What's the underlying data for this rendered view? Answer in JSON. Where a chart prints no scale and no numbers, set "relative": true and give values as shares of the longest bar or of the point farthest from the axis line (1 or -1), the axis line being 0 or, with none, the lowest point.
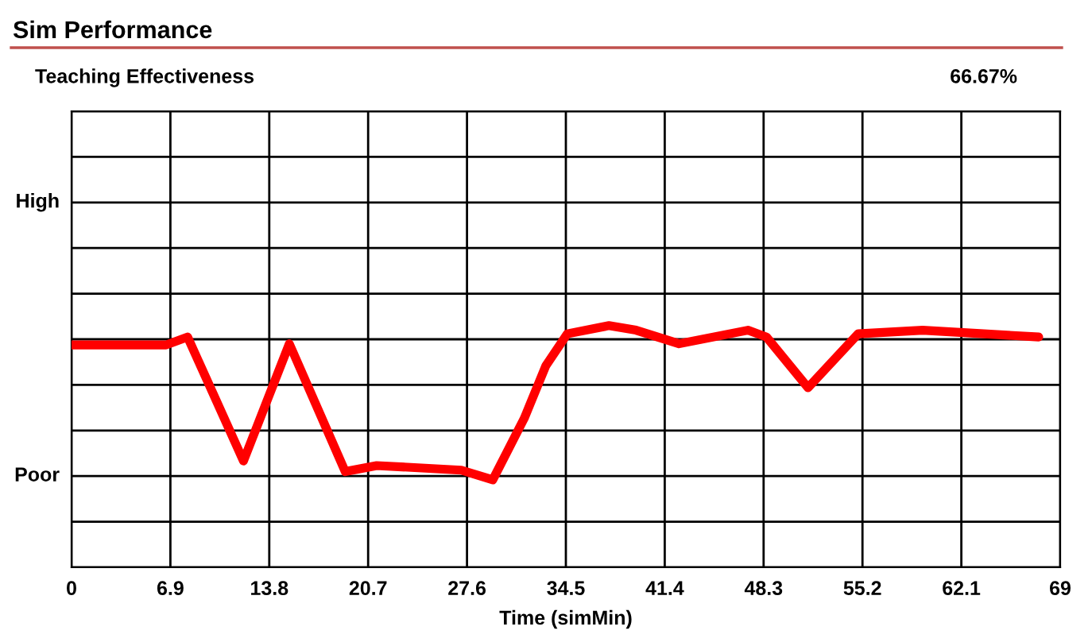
{
  "chart_data": {
    "type": "line",
    "title": "Sim Performance",
    "subtitle": "Teaching Effectiveness",
    "annotations": [
      "66.67%",
      "High",
      "Poor"
    ],
    "relative": true,
    "xlabel": "Time (simMin)",
    "x": [
      0,
      6.6,
      8.1,
      12.0,
      15.2,
      19.1,
      21.3,
      27.2,
      29.4,
      31.6,
      33.1,
      34.6,
      37.5,
      39.4,
      42.4,
      47.2,
      48.5,
      51.4,
      54.9,
      59.4,
      67.5
    ],
    "series": [
      {
        "color": "#ff0000",
        "values": [
          0.92,
          0.92,
          0.953,
          0.44,
          0.925,
          0.396,
          0.421,
          0.402,
          0.362,
          0.617,
          0.834,
          0.966,
          1,
          0.981,
          0.925,
          0.981,
          0.953,
          0.743,
          0.966,
          0.981,
          0.953
        ]
      }
    ],
    "xlim": [
      0,
      69
    ],
    "xticks": [
      0,
      6.9,
      13.8,
      20.7,
      27.6,
      34.5,
      41.4,
      48.3,
      55.2,
      62.1,
      69
    ],
    "grid": true,
    "marker": "none",
    "line_style": "solid"
  }
}
